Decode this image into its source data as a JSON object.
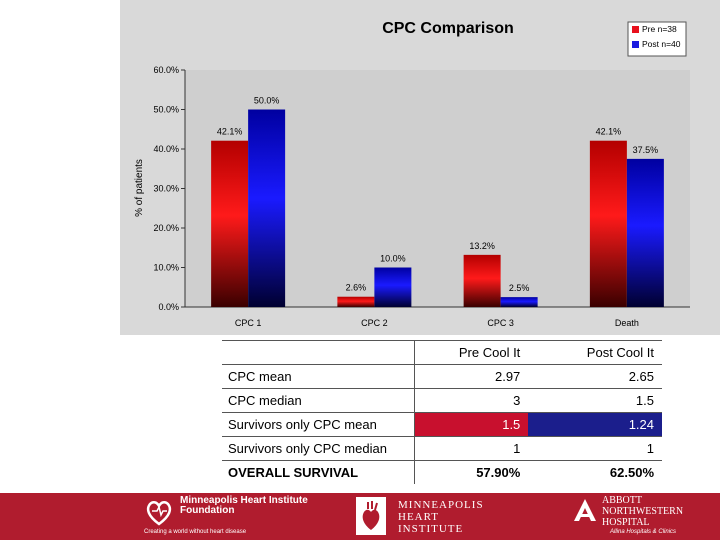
{
  "chart_data": {
    "type": "bar",
    "title": "CPC Comparison",
    "ylabel": "% of patients",
    "xlabel": "",
    "categories": [
      "CPC 1",
      "CPC 2",
      "CPC 3",
      "Death"
    ],
    "ylim": [
      0,
      60
    ],
    "yticks": [
      "0.0%",
      "10.0%",
      "20.0%",
      "30.0%",
      "40.0%",
      "50.0%",
      "60.0%"
    ],
    "series": [
      {
        "name": "Pre n=38",
        "values": [
          42.1,
          2.6,
          13.2,
          42.1
        ],
        "labels": [
          "42.1%",
          "2.6%",
          "13.2%",
          "42.1%"
        ],
        "color": "#e8101c"
      },
      {
        "name": "Post n=40",
        "values": [
          50.0,
          10.0,
          2.5,
          37.5
        ],
        "labels": [
          "50.0%",
          "10.0%",
          "2.5%",
          "37.5%"
        ],
        "color": "#1a1ae0"
      }
    ],
    "legend": "top-right",
    "grid": false
  },
  "table": {
    "header": {
      "label": "",
      "pre": "Pre Cool It",
      "post": "Post Cool It"
    },
    "rows": [
      {
        "label": "CPC mean",
        "pre": "2.97",
        "post": "2.65"
      },
      {
        "label": "CPC median",
        "pre": "3",
        "post": "1.5"
      },
      {
        "label": "Survivors only CPC mean",
        "pre": "1.5",
        "post": "1.24"
      },
      {
        "label": "Survivors only CPC median",
        "pre": "1",
        "post": "1"
      },
      {
        "label": "OVERALL SURVIVAL",
        "pre": "57.90%",
        "post": "62.50%"
      }
    ]
  },
  "footer": {
    "mhif": {
      "name": "Minneapolis Heart Institute Foundation",
      "tagline": "Creating a world without heart disease"
    },
    "mhi": {
      "line1": "MINNEAPOLIS",
      "line2": "HEART",
      "line3": "INSTITUTE"
    },
    "anw": {
      "line1": "ABBOTT",
      "line2": "NORTHWESTERN",
      "line3": "HOSPITAL",
      "tagline": "Allina Hospitals & Clinics"
    }
  },
  "colors": {
    "footer": "#b01c2e",
    "pre_highlight": "#c8102e",
    "post_highlight": "#1b1e8c"
  }
}
